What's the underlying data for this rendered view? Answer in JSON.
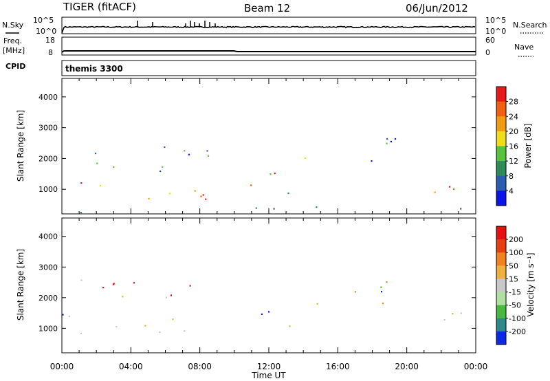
{
  "header": {
    "left": "TIGER (fitACF)",
    "center": "Beam 12",
    "right": "06/Jun/2012"
  },
  "nsky": {
    "label": "N.Sky",
    "ticks_left": [
      "10^5",
      "10^0"
    ],
    "ticks_right": [
      "10^5",
      "10^0"
    ],
    "right_label": "N.Search"
  },
  "freq": {
    "label": "Freq.",
    "unit": "[MHz]",
    "ticks_left": [
      "18",
      "8"
    ],
    "ticks_right": [
      "60",
      "0"
    ],
    "right_label": "Nave"
  },
  "cpid": {
    "label": "CPID",
    "value": "themis 3300"
  },
  "chart_data": [
    {
      "type": "heatmap",
      "name": "power",
      "ylabel": "Slant Range [km]",
      "yticks": [
        1000,
        2000,
        3000,
        4000
      ],
      "ylim": [
        200,
        4600
      ],
      "colorbar": {
        "label": "Power [dB]",
        "ticks": [
          "4",
          "8",
          "12",
          "16",
          "20",
          "24",
          "28"
        ],
        "colors": [
          "#0a14e6",
          "#2a5cb0",
          "#2e8a5a",
          "#58c23c",
          "#f0dc18",
          "#f09a10",
          "#f06010",
          "#e61a1a"
        ]
      },
      "scatter_regions": [
        {
          "t": [
            0,
            2.5
          ],
          "r": [
            950,
            1650
          ],
          "c": [
            7,
            6,
            5,
            4,
            3
          ]
        },
        {
          "t": [
            2.5,
            8.8
          ],
          "r": [
            700,
            1500
          ],
          "c": [
            7,
            6,
            5,
            4
          ]
        },
        {
          "t": [
            1,
            8.8
          ],
          "r": [
            1500,
            2600
          ],
          "c": [
            1,
            2,
            3,
            0
          ]
        },
        {
          "t": [
            10.2,
            11
          ],
          "r": [
            1100,
            2100
          ],
          "c": [
            3,
            4,
            6,
            1
          ]
        },
        {
          "t": [
            11,
            13.6
          ],
          "r": [
            800,
            1700
          ],
          "c": [
            5,
            6,
            7,
            3,
            2
          ]
        },
        {
          "t": [
            13.6,
            19.6
          ],
          "r": [
            1800,
            2700
          ],
          "c": [
            0,
            1,
            3,
            4
          ]
        },
        {
          "t": [
            21,
            24
          ],
          "r": [
            900,
            1800
          ],
          "c": [
            7,
            6,
            5,
            4,
            1
          ]
        },
        {
          "t": [
            0,
            24
          ],
          "r": [
            250,
            450
          ],
          "c": [
            0,
            1,
            2
          ]
        }
      ]
    },
    {
      "type": "heatmap",
      "name": "velocity",
      "ylabel": "Slant Range [km]",
      "yticks": [
        1000,
        2000,
        3000,
        4000
      ],
      "ylim": [
        200,
        4600
      ],
      "colorbar": {
        "label": "Velocity [m s⁻¹]",
        "ticks": [
          "200",
          "100",
          "50",
          "15",
          "-15",
          "-50",
          "-100",
          "-200"
        ],
        "colors": [
          "#0a28e6",
          "#2e8a8a",
          "#48b840",
          "#b0e0a0",
          "#c8c8c8",
          "#f0b040",
          "#f08020",
          "#e64010",
          "#e61010"
        ]
      },
      "scatter_regions": [
        {
          "t": [
            0,
            8.8
          ],
          "r": [
            800,
            1600
          ],
          "c": [
            4,
            4,
            4,
            5,
            6,
            8,
            0,
            2
          ]
        },
        {
          "t": [
            1,
            8.8
          ],
          "r": [
            1600,
            2600
          ],
          "c": [
            4,
            5,
            1,
            8
          ]
        },
        {
          "t": [
            10,
            11.6
          ],
          "r": [
            1000,
            1700
          ],
          "c": [
            0,
            0,
            0,
            1
          ]
        },
        {
          "t": [
            11.6,
            13.8
          ],
          "r": [
            800,
            1700
          ],
          "c": [
            6,
            7,
            2,
            0,
            5
          ]
        },
        {
          "t": [
            13.6,
            19.6
          ],
          "r": [
            1800,
            2700
          ],
          "c": [
            7,
            6,
            5,
            0,
            2
          ]
        },
        {
          "t": [
            21,
            24
          ],
          "r": [
            900,
            1700
          ],
          "c": [
            4,
            4,
            5,
            6,
            2
          ]
        }
      ]
    }
  ],
  "xaxis": {
    "label": "Time UT",
    "ticks": [
      "00:00",
      "04:00",
      "08:00",
      "12:00",
      "16:00",
      "20:00",
      "00:00"
    ],
    "range_hours": [
      0,
      24
    ]
  }
}
